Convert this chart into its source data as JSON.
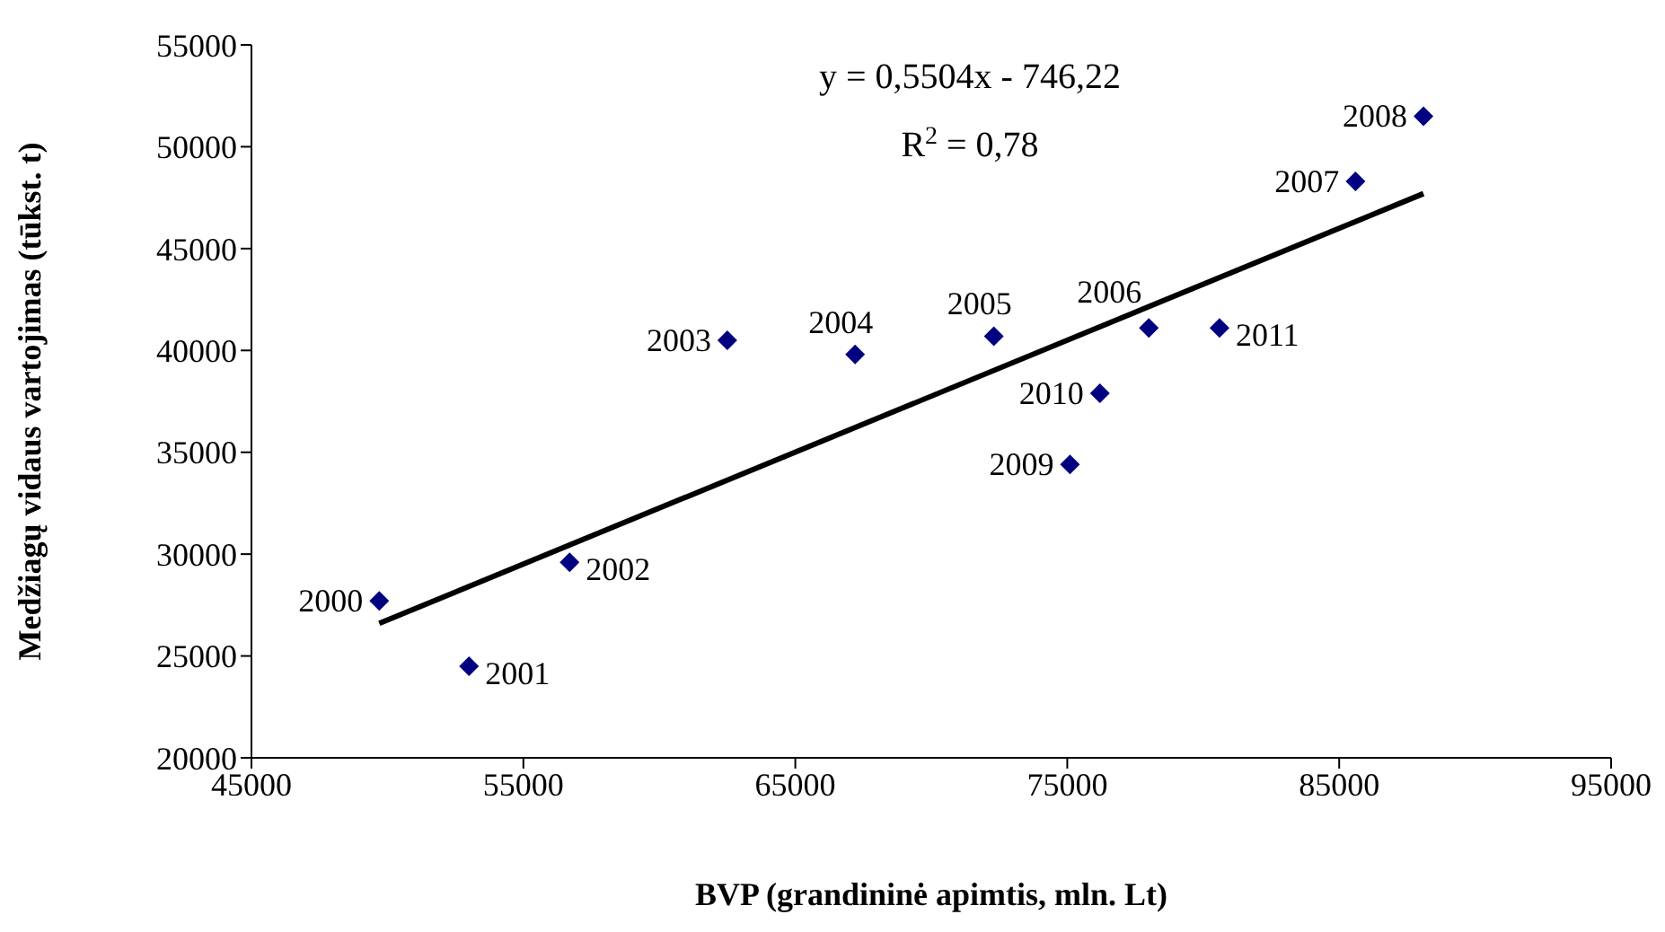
{
  "chart_data": {
    "type": "scatter",
    "xlabel": "BVP (grandininė apimtis, mln. Lt)",
    "ylabel": "Medžiagų vidaus vartojimas (tūkst. t)",
    "xlim": [
      45000,
      95000
    ],
    "xticks": [
      45000,
      55000,
      65000,
      75000,
      85000,
      95000
    ],
    "ylim": [
      20000,
      55000
    ],
    "yticks": [
      20000,
      25000,
      30000,
      35000,
      40000,
      45000,
      50000,
      55000
    ],
    "marker": "diamond",
    "grid": false,
    "annotations": [
      "y = 0,5504x - 746,22",
      "R$^{2}$ = 0,78",
      {
        "text": "2000",
        "x": 49700,
        "y": 27700
      },
      {
        "text": "2001",
        "x": 53000,
        "y": 24500
      },
      {
        "text": "2002",
        "x": 56700,
        "y": 29600
      },
      {
        "text": "2003",
        "x": 62500,
        "y": 40500
      },
      {
        "text": "2004",
        "x": 67200,
        "y": 39800
      },
      {
        "text": "2005",
        "x": 72300,
        "y": 40700
      },
      {
        "text": "2006",
        "x": 78000,
        "y": 41100
      },
      {
        "text": "2007",
        "x": 85600,
        "y": 48300
      },
      {
        "text": "2008",
        "x": 88100,
        "y": 51500
      },
      {
        "text": "2009",
        "x": 75100,
        "y": 34400
      },
      {
        "text": "2010",
        "x": 76200,
        "y": 37900
      },
      {
        "text": "2011",
        "x": 80600,
        "y": 41100
      }
    ],
    "series": [
      {
        "color": "#000080",
        "x": [
          49700,
          53000,
          56700,
          62500,
          67200,
          72300,
          78000,
          85600,
          88100,
          75100,
          76200,
          80600
        ],
        "values": [
          27700,
          24500,
          29600,
          40500,
          39800,
          40700,
          41100,
          48300,
          51500,
          34400,
          37900,
          41100
        ]
      },
      {
        "type": "line",
        "color": "#000000",
        "x": [
          49700,
          88100
        ],
        "values": [
          26600,
          47700
        ],
        "line_style": "solid",
        "marker": "none"
      }
    ]
  }
}
